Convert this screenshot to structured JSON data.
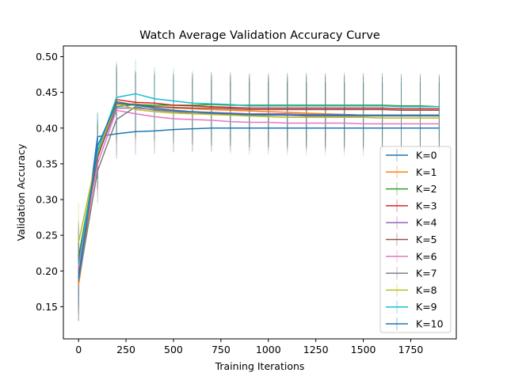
{
  "chart_data": {
    "type": "line",
    "title": "Watch Average Validation Accuracy Curve",
    "xlabel": "Training Iterations",
    "ylabel": "Validation Accuracy",
    "xlim": [
      -80,
      1990
    ],
    "ylim": [
      0.105,
      0.515
    ],
    "xticks": [
      0,
      250,
      500,
      750,
      1000,
      1250,
      1500,
      1750
    ],
    "yticks": [
      0.15,
      0.2,
      0.25,
      0.3,
      0.35,
      0.4,
      0.45,
      0.5
    ],
    "xtick_labels": [
      "0",
      "250",
      "500",
      "750",
      "1000",
      "1250",
      "1500",
      "1750"
    ],
    "ytick_labels": [
      "0.15",
      "0.20",
      "0.25",
      "0.30",
      "0.35",
      "0.40",
      "0.45",
      "0.50"
    ],
    "grid": false,
    "legend_position": "lower-right",
    "error_bars": true,
    "x": [
      0,
      100,
      200,
      300,
      400,
      500,
      600,
      700,
      800,
      900,
      1000,
      1100,
      1200,
      1300,
      1400,
      1500,
      1600,
      1700,
      1800,
      1900
    ],
    "series": [
      {
        "name": "K=0",
        "color": "#1f77b4",
        "values": [
          0.185,
          0.388,
          0.392,
          0.395,
          0.396,
          0.398,
          0.399,
          0.4,
          0.4,
          0.4,
          0.4,
          0.4,
          0.4,
          0.4,
          0.4,
          0.4,
          0.4,
          0.4,
          0.4,
          0.4
        ],
        "err": [
          0.055,
          0.035,
          0.035,
          0.032,
          0.032,
          0.032,
          0.032,
          0.032,
          0.032,
          0.032,
          0.032,
          0.032,
          0.032,
          0.032,
          0.032,
          0.032,
          0.032,
          0.032,
          0.032,
          0.032
        ]
      },
      {
        "name": "K=1",
        "color": "#ff7f0e",
        "values": [
          0.18,
          0.36,
          0.433,
          0.434,
          0.43,
          0.428,
          0.427,
          0.426,
          0.425,
          0.424,
          0.423,
          0.422,
          0.421,
          0.42,
          0.419,
          0.418,
          0.418,
          0.418,
          0.418,
          0.418
        ],
        "err": [
          0.05,
          0.045,
          0.05,
          0.045,
          0.045,
          0.045,
          0.045,
          0.045,
          0.045,
          0.045,
          0.045,
          0.045,
          0.045,
          0.045,
          0.045,
          0.045,
          0.045,
          0.045,
          0.045,
          0.045
        ]
      },
      {
        "name": "K=2",
        "color": "#2ca02c",
        "values": [
          0.22,
          0.365,
          0.43,
          0.433,
          0.432,
          0.432,
          0.432,
          0.433,
          0.432,
          0.432,
          0.432,
          0.432,
          0.432,
          0.432,
          0.432,
          0.432,
          0.432,
          0.431,
          0.431,
          0.43
        ],
        "err": [
          0.05,
          0.045,
          0.05,
          0.045,
          0.045,
          0.045,
          0.045,
          0.045,
          0.045,
          0.045,
          0.045,
          0.045,
          0.045,
          0.045,
          0.045,
          0.045,
          0.045,
          0.045,
          0.045,
          0.045
        ]
      },
      {
        "name": "K=3",
        "color": "#d62728",
        "values": [
          0.215,
          0.362,
          0.44,
          0.436,
          0.435,
          0.432,
          0.431,
          0.43,
          0.429,
          0.428,
          0.428,
          0.428,
          0.428,
          0.428,
          0.428,
          0.428,
          0.428,
          0.427,
          0.427,
          0.427
        ],
        "err": [
          0.05,
          0.045,
          0.05,
          0.045,
          0.045,
          0.045,
          0.045,
          0.045,
          0.045,
          0.045,
          0.045,
          0.045,
          0.045,
          0.045,
          0.045,
          0.045,
          0.045,
          0.045,
          0.045,
          0.045
        ]
      },
      {
        "name": "K=4",
        "color": "#9467bd",
        "values": [
          0.2,
          0.36,
          0.428,
          0.428,
          0.426,
          0.424,
          0.423,
          0.422,
          0.421,
          0.42,
          0.42,
          0.42,
          0.419,
          0.419,
          0.419,
          0.418,
          0.418,
          0.418,
          0.418,
          0.418
        ],
        "err": [
          0.05,
          0.045,
          0.05,
          0.045,
          0.045,
          0.045,
          0.045,
          0.045,
          0.045,
          0.045,
          0.045,
          0.045,
          0.045,
          0.045,
          0.045,
          0.045,
          0.045,
          0.045,
          0.045,
          0.045
        ]
      },
      {
        "name": "K=5",
        "color": "#8c564b",
        "values": [
          0.195,
          0.358,
          0.437,
          0.432,
          0.43,
          0.429,
          0.428,
          0.428,
          0.427,
          0.426,
          0.426,
          0.426,
          0.426,
          0.426,
          0.426,
          0.426,
          0.426,
          0.425,
          0.425,
          0.425
        ],
        "err": [
          0.05,
          0.045,
          0.05,
          0.045,
          0.045,
          0.045,
          0.045,
          0.045,
          0.045,
          0.045,
          0.045,
          0.045,
          0.045,
          0.045,
          0.045,
          0.045,
          0.045,
          0.045,
          0.045,
          0.045
        ]
      },
      {
        "name": "K=6",
        "color": "#e377c2",
        "values": [
          0.205,
          0.35,
          0.425,
          0.42,
          0.416,
          0.413,
          0.412,
          0.411,
          0.409,
          0.408,
          0.408,
          0.407,
          0.407,
          0.407,
          0.407,
          0.406,
          0.406,
          0.406,
          0.406,
          0.406
        ],
        "err": [
          0.05,
          0.045,
          0.05,
          0.045,
          0.045,
          0.045,
          0.045,
          0.045,
          0.045,
          0.045,
          0.045,
          0.045,
          0.045,
          0.045,
          0.045,
          0.045,
          0.045,
          0.045,
          0.045,
          0.045
        ]
      },
      {
        "name": "K=7",
        "color": "#7f7f7f",
        "values": [
          0.185,
          0.34,
          0.412,
          0.43,
          0.425,
          0.423,
          0.421,
          0.42,
          0.419,
          0.418,
          0.418,
          0.418,
          0.417,
          0.417,
          0.417,
          0.417,
          0.417,
          0.417,
          0.417,
          0.417
        ],
        "err": [
          0.055,
          0.045,
          0.05,
          0.045,
          0.045,
          0.045,
          0.045,
          0.045,
          0.045,
          0.045,
          0.045,
          0.045,
          0.045,
          0.045,
          0.045,
          0.045,
          0.045,
          0.045,
          0.045,
          0.045
        ]
      },
      {
        "name": "K=8",
        "color": "#bcbd22",
        "values": [
          0.24,
          0.365,
          0.435,
          0.426,
          0.423,
          0.421,
          0.42,
          0.419,
          0.418,
          0.417,
          0.416,
          0.415,
          0.415,
          0.415,
          0.415,
          0.415,
          0.414,
          0.414,
          0.414,
          0.414
        ],
        "err": [
          0.055,
          0.045,
          0.05,
          0.045,
          0.045,
          0.045,
          0.045,
          0.045,
          0.045,
          0.045,
          0.045,
          0.045,
          0.045,
          0.045,
          0.045,
          0.045,
          0.045,
          0.045,
          0.045,
          0.045
        ]
      },
      {
        "name": "K=9",
        "color": "#17becf",
        "values": [
          0.21,
          0.368,
          0.443,
          0.448,
          0.441,
          0.438,
          0.435,
          0.434,
          0.433,
          0.431,
          0.431,
          0.431,
          0.431,
          0.431,
          0.431,
          0.431,
          0.431,
          0.43,
          0.43,
          0.43
        ],
        "err": [
          0.05,
          0.045,
          0.05,
          0.048,
          0.045,
          0.045,
          0.045,
          0.045,
          0.045,
          0.045,
          0.045,
          0.045,
          0.045,
          0.045,
          0.045,
          0.045,
          0.045,
          0.045,
          0.045,
          0.045
        ]
      },
      {
        "name": "K=10",
        "color": "#1f77b4",
        "values": [
          0.19,
          0.375,
          0.435,
          0.432,
          0.428,
          0.425,
          0.423,
          0.421,
          0.42,
          0.419,
          0.419,
          0.418,
          0.418,
          0.418,
          0.418,
          0.418,
          0.418,
          0.418,
          0.418,
          0.418
        ],
        "err": [
          0.05,
          0.045,
          0.05,
          0.045,
          0.045,
          0.045,
          0.045,
          0.045,
          0.045,
          0.045,
          0.045,
          0.045,
          0.045,
          0.045,
          0.045,
          0.045,
          0.045,
          0.045,
          0.045,
          0.045
        ]
      }
    ]
  }
}
